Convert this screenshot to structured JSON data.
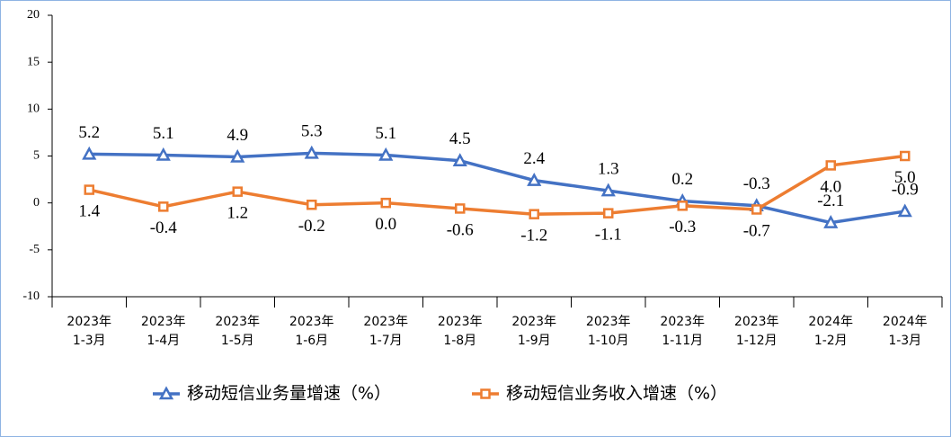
{
  "chart_data": {
    "type": "line",
    "categories": [
      [
        "2023年",
        "1-3月"
      ],
      [
        "2023年",
        "1-4月"
      ],
      [
        "2023年",
        "1-5月"
      ],
      [
        "2023年",
        "1-6月"
      ],
      [
        "2023年",
        "1-7月"
      ],
      [
        "2023年",
        "1-8月"
      ],
      [
        "2023年",
        "1-9月"
      ],
      [
        "2023年",
        "1-10月"
      ],
      [
        "2023年",
        "1-11月"
      ],
      [
        "2023年",
        "1-12月"
      ],
      [
        "2024年",
        "1-2月"
      ],
      [
        "2024年",
        "1-3月"
      ]
    ],
    "series": [
      {
        "name": "移动短信业务量增速（%）",
        "color": "#4472c4",
        "marker": "triangle",
        "values": [
          5.2,
          5.1,
          4.9,
          5.3,
          5.1,
          4.5,
          2.4,
          1.3,
          0.2,
          -0.3,
          -2.1,
          -0.9
        ],
        "value_labels": [
          "5.2",
          "5.1",
          "4.9",
          "5.3",
          "5.1",
          "4.5",
          "2.4",
          "1.3",
          "0.2",
          "-0.3",
          "-2.1",
          "-0.9"
        ]
      },
      {
        "name": "移动短信业务收入增速（%）",
        "color": "#ed7d31",
        "marker": "square",
        "values": [
          1.4,
          -0.4,
          1.2,
          -0.2,
          0.0,
          -0.6,
          -1.2,
          -1.1,
          -0.3,
          -0.7,
          4.0,
          5.0
        ],
        "value_labels": [
          "1.4",
          "-0.4",
          "1.2",
          "-0.2",
          "0.0",
          "-0.6",
          "-1.2",
          "-1.1",
          "-0.3",
          "-0.7",
          "4.0",
          "5.0"
        ]
      }
    ],
    "ylim": [
      -10,
      20
    ],
    "yticks": [
      -10,
      -5,
      0,
      5,
      10,
      15,
      20
    ],
    "grid": false
  }
}
